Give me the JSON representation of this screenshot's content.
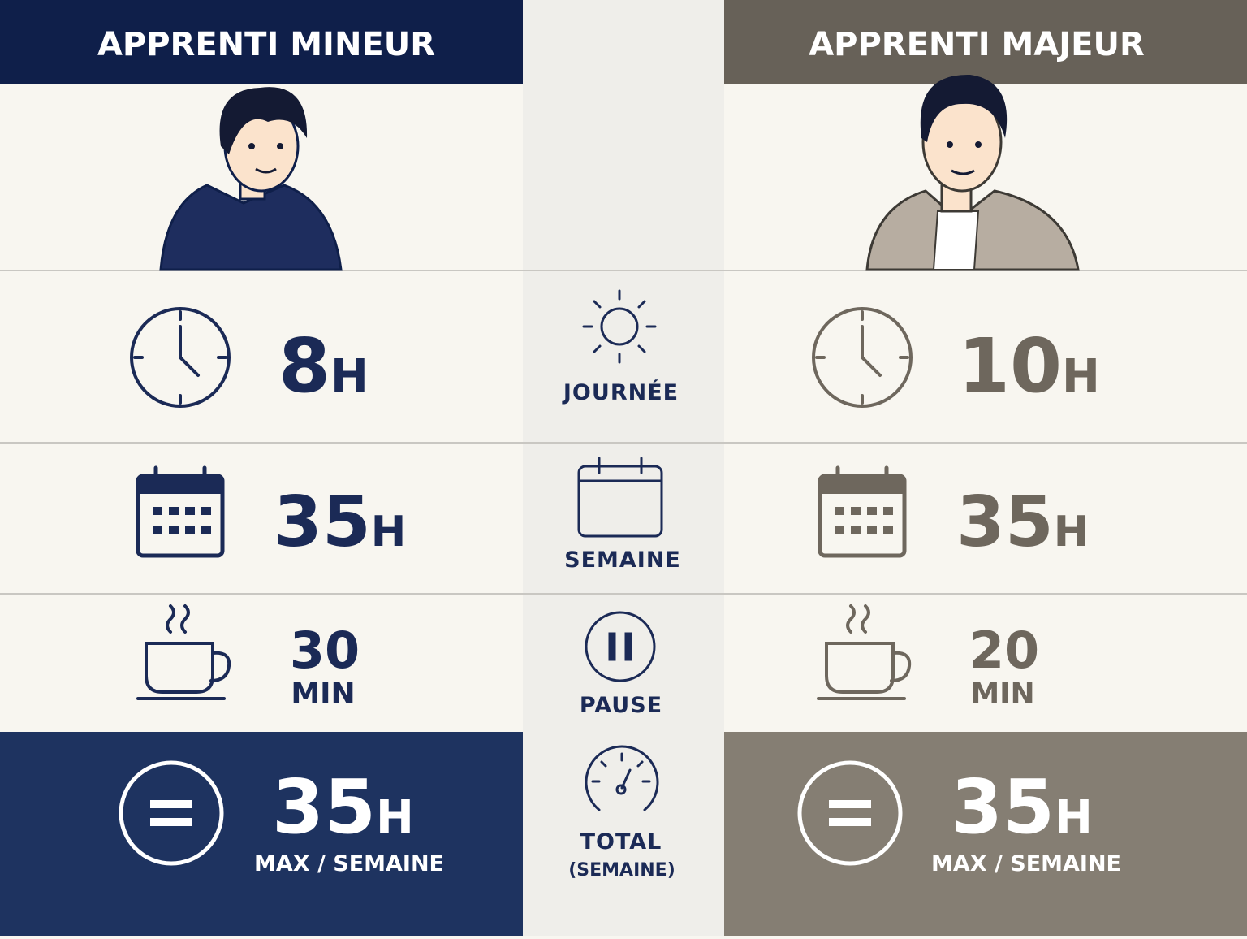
{
  "columns": {
    "left": {
      "title": "APPRENTI MINEUR"
    },
    "right": {
      "title": "APPRENTI MAJEUR"
    }
  },
  "rows": [
    {
      "label": "JOURNÉE",
      "left": {
        "value": "8",
        "unit": "H"
      },
      "right": {
        "value": "10",
        "unit": "H"
      }
    },
    {
      "label": "SEMAINE",
      "left": {
        "value": "35",
        "unit": "H"
      },
      "right": {
        "value": "35",
        "unit": "H"
      }
    },
    {
      "label": "PAUSE",
      "left": {
        "value": "30",
        "unit": "MIN"
      },
      "right": {
        "value": "20",
        "unit": "MIN"
      }
    },
    {
      "label": "TOTAL",
      "sublabel": "(SEMAINE)",
      "left": {
        "value": "35",
        "unit": "H",
        "note": "MAX / SEMAINE"
      },
      "right": {
        "value": "35",
        "unit": "H",
        "note": "MAX / SEMAINE"
      }
    }
  ]
}
